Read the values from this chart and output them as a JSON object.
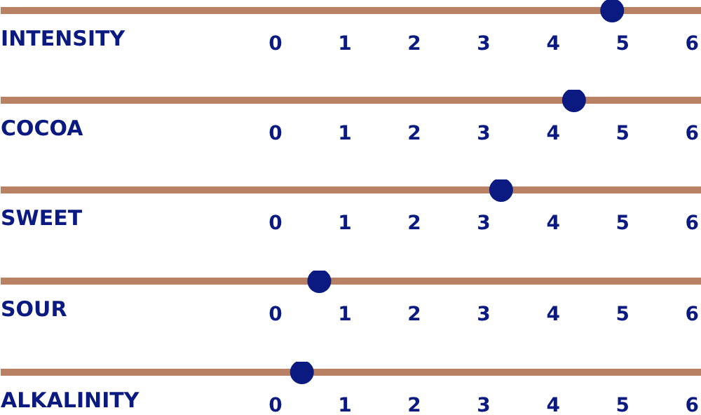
{
  "chart_data": [
    {
      "type": "scatter",
      "orientation": "horizontal",
      "categories": [
        "INTENSITY"
      ],
      "values": [
        4.85
      ],
      "color": "#0a1a80",
      "marker": "circle",
      "xlim": [
        -3.96,
        6.14
      ],
      "xticks": [
        0,
        1,
        2,
        3,
        4,
        5,
        6
      ]
    },
    {
      "type": "scatter",
      "orientation": "horizontal",
      "categories": [
        "COCOA"
      ],
      "values": [
        4.3
      ],
      "color": "#0a1a80",
      "marker": "circle",
      "xlim": [
        -3.96,
        6.14
      ],
      "xticks": [
        0,
        1,
        2,
        3,
        4,
        5,
        6
      ]
    },
    {
      "type": "scatter",
      "orientation": "horizontal",
      "categories": [
        "SWEET"
      ],
      "values": [
        3.25
      ],
      "color": "#0a1a80",
      "marker": "circle",
      "xlim": [
        -3.96,
        6.14
      ],
      "xticks": [
        0,
        1,
        2,
        3,
        4,
        5,
        6
      ]
    },
    {
      "type": "scatter",
      "orientation": "horizontal",
      "categories": [
        "SOUR"
      ],
      "values": [
        0.63
      ],
      "color": "#0a1a80",
      "marker": "circle",
      "xlim": [
        -3.96,
        6.14
      ],
      "xticks": [
        0,
        1,
        2,
        3,
        4,
        5,
        6
      ]
    },
    {
      "type": "scatter",
      "orientation": "horizontal",
      "categories": [
        "ALKALINITY"
      ],
      "values": [
        0.38
      ],
      "color": "#0a1a80",
      "marker": "circle",
      "xlim": [
        -3.96,
        6.14
      ],
      "xticks": [
        0,
        1,
        2,
        3,
        4,
        5,
        6
      ]
    }
  ]
}
